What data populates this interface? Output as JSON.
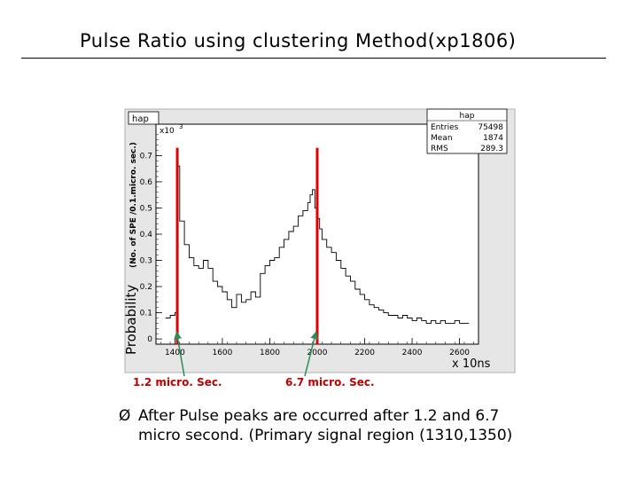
{
  "slide": {
    "title": "Pulse Ratio using clustering Method(xp1806)"
  },
  "chart_data": {
    "type": "step",
    "hist_name": "hap",
    "stats": [
      {
        "label": "Entries",
        "value": "75498"
      },
      {
        "label": "Mean",
        "value": "1874"
      },
      {
        "label": "RMS",
        "value": "289.3"
      }
    ],
    "ylabel_main": "Probability",
    "ylabel_sub": "(No. of SPE /0.1.micro. sec.)",
    "y_multiplier": "x10",
    "y_multiplier_exp": "3",
    "x_multiplier": "x 10ns",
    "xlim": [
      1320,
      2680
    ],
    "ylim": [
      -0.02,
      0.82
    ],
    "xticks": [
      1400,
      1600,
      1800,
      2000,
      2200,
      2400,
      2600
    ],
    "yticks": [
      0,
      0.1,
      0.2,
      0.3,
      0.4,
      0.5,
      0.6,
      0.7
    ],
    "x": [
      1360,
      1380,
      1400,
      1410,
      1420,
      1440,
      1460,
      1480,
      1500,
      1520,
      1540,
      1560,
      1580,
      1600,
      1620,
      1640,
      1660,
      1680,
      1700,
      1720,
      1740,
      1760,
      1780,
      1800,
      1820,
      1840,
      1860,
      1880,
      1900,
      1920,
      1940,
      1960,
      1970,
      1980,
      1990,
      2000,
      2010,
      2020,
      2040,
      2060,
      2080,
      2100,
      2120,
      2140,
      2160,
      2180,
      2200,
      2220,
      2240,
      2260,
      2280,
      2300,
      2320,
      2340,
      2360,
      2380,
      2400,
      2420,
      2440,
      2460,
      2480,
      2500,
      2520,
      2540,
      2560,
      2580,
      2600,
      2620
    ],
    "values": [
      0.08,
      0.09,
      0.1,
      0.66,
      0.45,
      0.36,
      0.31,
      0.28,
      0.27,
      0.3,
      0.27,
      0.22,
      0.2,
      0.18,
      0.15,
      0.12,
      0.17,
      0.14,
      0.15,
      0.18,
      0.16,
      0.25,
      0.28,
      0.3,
      0.31,
      0.35,
      0.38,
      0.41,
      0.43,
      0.47,
      0.49,
      0.52,
      0.55,
      0.57,
      0.5,
      0.46,
      0.42,
      0.38,
      0.35,
      0.33,
      0.3,
      0.27,
      0.24,
      0.22,
      0.19,
      0.17,
      0.15,
      0.13,
      0.12,
      0.11,
      0.1,
      0.09,
      0.09,
      0.08,
      0.09,
      0.08,
      0.07,
      0.08,
      0.07,
      0.06,
      0.07,
      0.06,
      0.07,
      0.06,
      0.06,
      0.07,
      0.06,
      0.06
    ],
    "markers": [
      {
        "x": 1410,
        "color": "#e00000"
      },
      {
        "x": 2000,
        "color": "#e00000"
      }
    ],
    "annotations": [
      {
        "text": "1.2 micro. Sec.",
        "target_x": 1410
      },
      {
        "text": "6.7 micro. Sec.",
        "target_x": 2000
      }
    ]
  },
  "bullet": {
    "mark": "Ø",
    "line1": "After Pulse peaks are occurred after  1.2 and 6.7",
    "line2": "micro second. (Primary signal region (1310,1350)"
  }
}
